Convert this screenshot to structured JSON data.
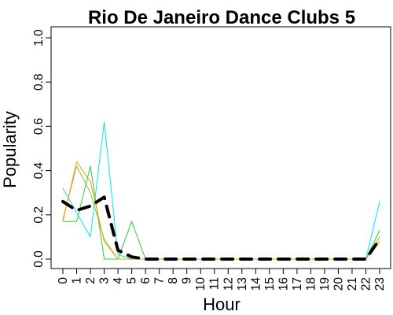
{
  "chart_data": {
    "type": "line",
    "title": "Rio De Janeiro Dance Clubs 5",
    "xlabel": "Hour",
    "ylabel": "Popularity",
    "x": [
      0,
      1,
      2,
      3,
      4,
      5,
      6,
      7,
      8,
      9,
      10,
      11,
      12,
      13,
      14,
      15,
      16,
      17,
      18,
      19,
      20,
      21,
      22,
      23
    ],
    "x_tick_labels": [
      "0",
      "1",
      "2",
      "3",
      "4",
      "5",
      "6",
      "7",
      "8",
      "9",
      "10",
      "11",
      "12",
      "13",
      "14",
      "15",
      "16",
      "17",
      "18",
      "19",
      "20",
      "21",
      "22",
      "23"
    ],
    "xlim": [
      0,
      23
    ],
    "ylim": [
      0,
      1
    ],
    "y_ticks": [
      0.0,
      0.2,
      0.4,
      0.6,
      0.8,
      1.0
    ],
    "y_tick_labels": [
      "0.0",
      "0.2",
      "0.4",
      "0.6",
      "0.8",
      "1.0"
    ],
    "grid": false,
    "legend": "none",
    "series": [
      {
        "color": "#00e5ee",
        "style": "solid",
        "values": [
          0.32,
          0.21,
          0.1,
          0.62,
          0.02,
          0,
          0,
          0,
          0,
          0,
          0,
          0,
          0,
          0,
          0,
          0,
          0,
          0,
          0,
          0,
          0,
          0,
          0,
          0.26
        ]
      },
      {
        "color": "#33cc33",
        "style": "solid",
        "values": [
          0.17,
          0.17,
          0.42,
          0.0,
          0.0,
          0.17,
          0,
          0,
          0,
          0,
          0,
          0,
          0,
          0,
          0,
          0,
          0,
          0,
          0,
          0,
          0,
          0,
          0,
          0.13
        ]
      },
      {
        "color": "#8bc34a",
        "style": "solid",
        "values": [
          0.18,
          0.42,
          0.3,
          0.09,
          0.0,
          0,
          0,
          0,
          0,
          0,
          0,
          0,
          0,
          0,
          0,
          0,
          0,
          0,
          0,
          0,
          0,
          0,
          0,
          0.1
        ]
      },
      {
        "color": "#ff9900",
        "style": "solid",
        "values": [
          0.17,
          0.44,
          0.35,
          0.08,
          0.0,
          0,
          0,
          0,
          0,
          0,
          0,
          0,
          0,
          0,
          0,
          0,
          0,
          0,
          0,
          0,
          0,
          0,
          0,
          0.08
        ]
      },
      {
        "color": "#000000",
        "style": "dashed",
        "values": [
          0.26,
          0.22,
          0.24,
          0.28,
          0.04,
          0.01,
          0,
          0,
          0,
          0,
          0,
          0,
          0,
          0,
          0,
          0,
          0,
          0,
          0,
          0,
          0,
          0,
          0,
          0.09
        ]
      }
    ]
  }
}
